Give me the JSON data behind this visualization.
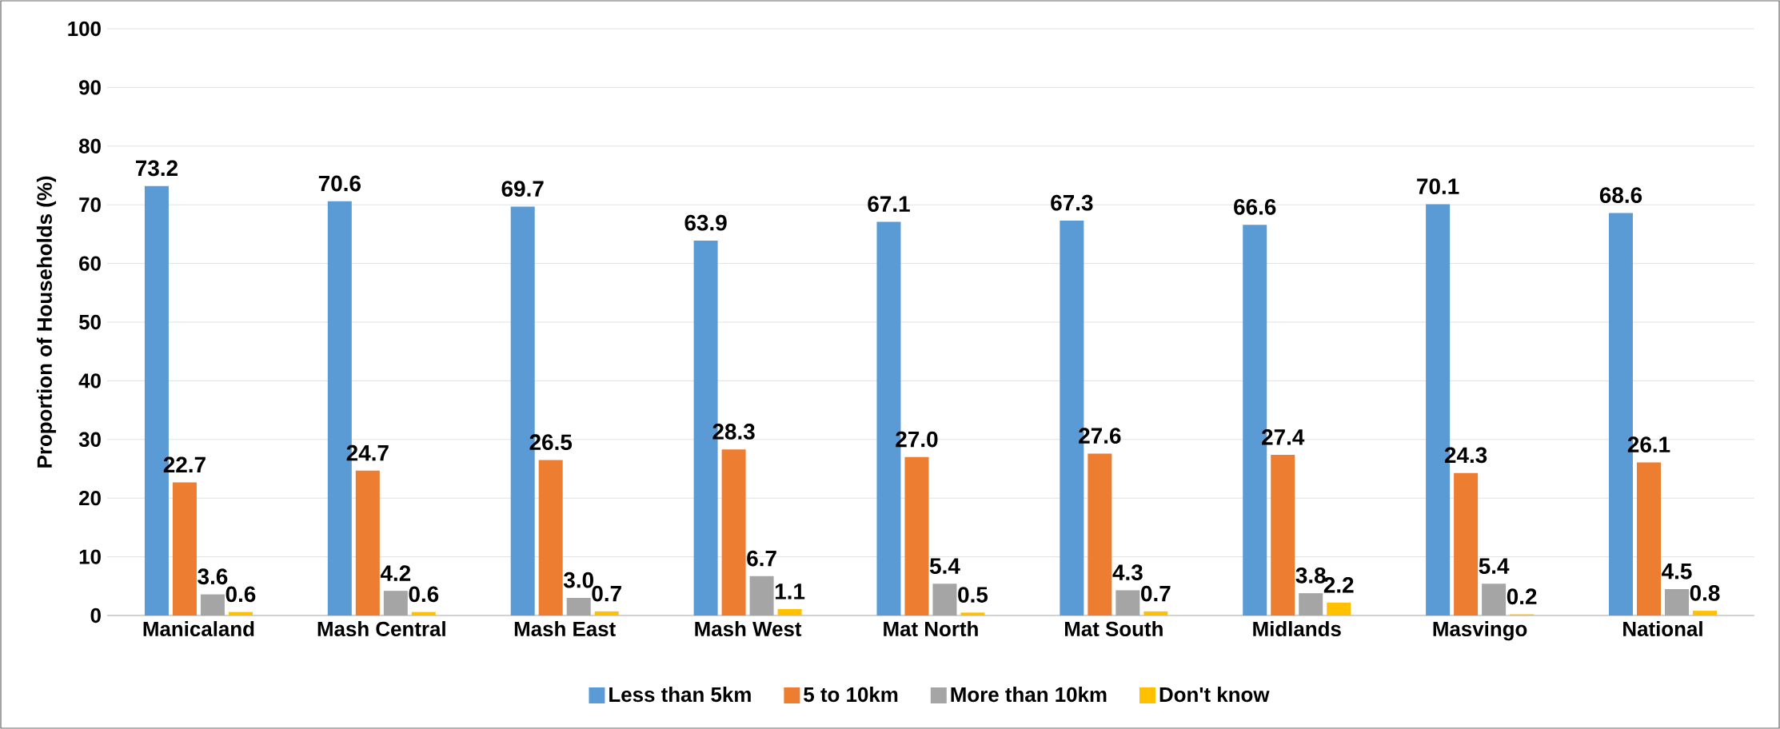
{
  "chart_data": {
    "type": "bar",
    "ylabel": "Proportion of Households (%)",
    "categories": [
      "Manicaland",
      "Mash Central",
      "Mash East",
      "Mash West",
      "Mat North",
      "Mat South",
      "Midlands",
      "Masvingo",
      "National"
    ],
    "series": [
      {
        "name": "Less than 5km",
        "color": "#5b9bd5",
        "values": [
          73.2,
          70.6,
          69.7,
          63.9,
          67.1,
          67.3,
          66.6,
          70.1,
          68.6
        ],
        "value_labels": [
          "73.2",
          "70.6",
          "69.7",
          "63.9",
          "67.1",
          "67.3",
          "66.6",
          "70.1",
          "68.6"
        ]
      },
      {
        "name": "5 to 10km",
        "color": "#ed7d31",
        "values": [
          22.7,
          24.7,
          26.5,
          28.3,
          27.0,
          27.6,
          27.4,
          24.3,
          26.1
        ],
        "value_labels": [
          "22.7",
          "24.7",
          "26.5",
          "28.3",
          "27.0",
          "27.6",
          "27.4",
          "24.3",
          "26.1"
        ]
      },
      {
        "name": "More than 10km",
        "color": "#a5a5a5",
        "values": [
          3.6,
          4.2,
          3.0,
          6.7,
          5.4,
          4.3,
          3.8,
          5.4,
          4.5
        ],
        "value_labels": [
          "3.6",
          "4.2",
          "3.0",
          "6.7",
          "5.4",
          "4.3",
          "3.8",
          "5.4",
          "4.5"
        ]
      },
      {
        "name": "Don't know",
        "color": "#ffc000",
        "values": [
          0.6,
          0.6,
          0.7,
          1.1,
          0.5,
          0.7,
          2.2,
          0.2,
          0.8
        ],
        "value_labels": [
          "0.6",
          "0.6",
          "0.7",
          "1.1",
          "0.5",
          "0.7",
          "2.2",
          "0.2",
          "0.8"
        ]
      }
    ],
    "ylim": [
      0,
      100
    ],
    "yticks": [
      0,
      10,
      20,
      30,
      40,
      50,
      60,
      70,
      80,
      90,
      100
    ],
    "grid": "y",
    "legend": "bottom"
  }
}
